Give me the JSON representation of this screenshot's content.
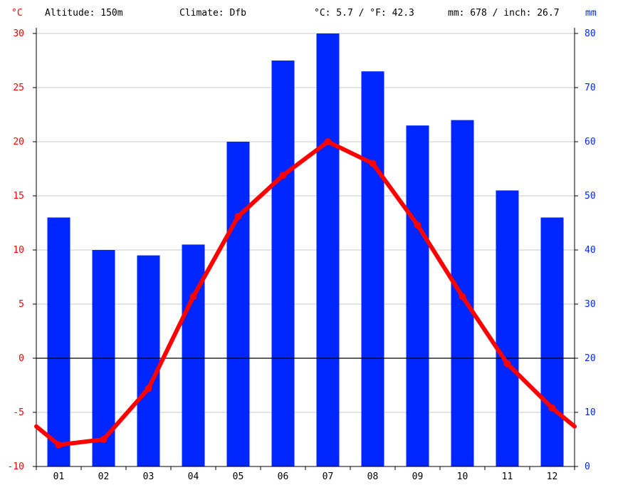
{
  "header": {
    "celsius_unit": "°C",
    "altitude": "Altitude: 150m",
    "climate": "Climate: Dfb",
    "temp_avg": "°C: 5.7 / °F: 42.3",
    "precip_total": "mm: 678 / inch: 26.7",
    "mm_unit": "mm"
  },
  "colors": {
    "temperature": "#ff0000",
    "precipitation": "#0026ff",
    "grid": "#c8c8c8",
    "zero_line": "#000000"
  },
  "chart_data": {
    "type": "bar",
    "categories": [
      "01",
      "02",
      "03",
      "04",
      "05",
      "06",
      "07",
      "08",
      "09",
      "10",
      "11",
      "12"
    ],
    "series": [
      {
        "name": "precipitation",
        "type": "bar",
        "axis": "right",
        "unit": "mm",
        "values": [
          46,
          40,
          39,
          41,
          60,
          75,
          80,
          73,
          63,
          64,
          51,
          46
        ]
      },
      {
        "name": "temperature",
        "type": "line",
        "axis": "left",
        "unit": "°C",
        "values": [
          -8.0,
          -7.5,
          -2.8,
          5.7,
          13.1,
          16.9,
          20.0,
          18.0,
          12.3,
          5.7,
          -0.5,
          -4.6
        ]
      }
    ],
    "y_left": {
      "label": "°C",
      "range": [
        -10,
        30
      ],
      "ticks": [
        "30",
        "25",
        "20",
        "15",
        "10",
        "5",
        "0",
        "-5",
        "-10"
      ]
    },
    "y_right": {
      "label": "mm",
      "range": [
        0,
        80
      ],
      "ticks": [
        "80",
        "70",
        "60",
        "50",
        "40",
        "30",
        "20",
        "10",
        "0"
      ]
    },
    "grid": true
  }
}
